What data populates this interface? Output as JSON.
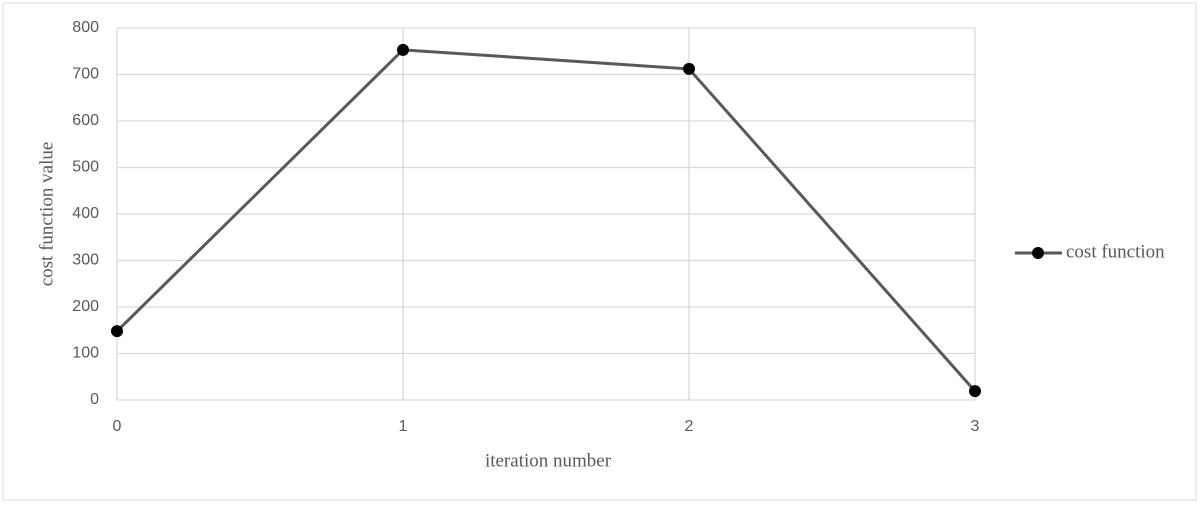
{
  "chart_data": {
    "type": "line",
    "x": [
      0,
      1,
      2,
      3
    ],
    "series": [
      {
        "name": "cost function",
        "color": "#595959",
        "marker_color": "#000000",
        "values": [
          148,
          753,
          712,
          19
        ]
      }
    ],
    "xlabel": "iteration number",
    "ylabel": "cost function value",
    "xlim": [
      0,
      3
    ],
    "xticks": [
      0,
      1,
      2,
      3
    ],
    "ylim": [
      0,
      800
    ],
    "yticks": [
      0,
      100,
      200,
      300,
      400,
      500,
      600,
      700,
      800
    ],
    "grid": true,
    "legend": "right"
  }
}
